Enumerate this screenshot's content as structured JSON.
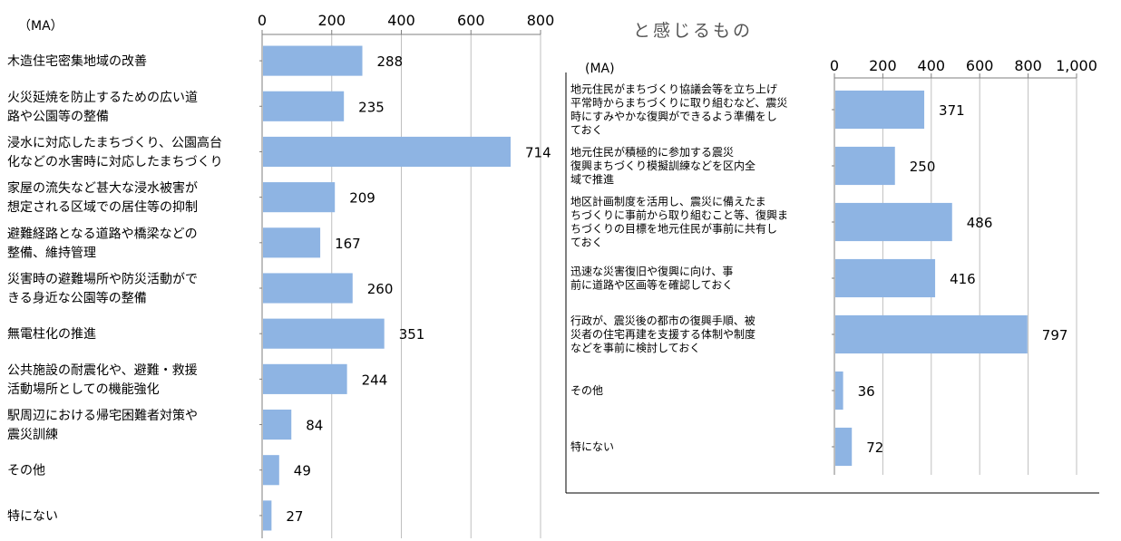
{
  "colors": {
    "bar": "#8EB4E3",
    "axis": "#7F7F7F",
    "grid": "#BFBFBF"
  },
  "chart_data": [
    {
      "type": "bar",
      "orientation": "horizontal",
      "unit_label": "（MA）",
      "xlim": [
        0,
        800
      ],
      "ticks": [
        "0",
        "200",
        "400",
        "600",
        "800"
      ],
      "grid": true,
      "categories": [
        [
          "木造住宅密集地域の改善"
        ],
        [
          "火災延焼を防止するための広い道",
          "路や公園等の整備"
        ],
        [
          "浸水に対応したまちづくり、公園高台",
          "化などの水害時に対応したまちづくり"
        ],
        [
          "家屋の流失など甚大な浸水被害が",
          "想定される区域での居住等の抑制"
        ],
        [
          "避難経路となる道路や橋梁などの",
          "整備、維持管理"
        ],
        [
          "災害時の避難場所や防災活動がで",
          "きる身近な公園等の整備"
        ],
        [
          "無電柱化の推進"
        ],
        [
          "公共施設の耐震化や、避難・救援",
          "活動場所としての機能強化"
        ],
        [
          "駅周辺における帰宅困難者対策や",
          "震災訓練"
        ],
        [
          "その他"
        ],
        [
          "特にない"
        ]
      ],
      "values": [
        288,
        235,
        714,
        209,
        167,
        260,
        351,
        244,
        84,
        49,
        27
      ]
    },
    {
      "type": "bar",
      "orientation": "horizontal",
      "title": "と感じるもの",
      "unit_label": "(MA)",
      "xlim": [
        0,
        1000
      ],
      "ticks": [
        "0",
        "200",
        "400",
        "600",
        "800",
        "1,000"
      ],
      "grid": true,
      "categories": [
        [
          "地元住民がまちづくり協議会等を立ち上げ",
          "平常時からまちづくりに取り組むなど、震災",
          "時にすみやかな復興ができるよう準備をし",
          "ておく"
        ],
        [
          "地元住民が積極的に参加する震災",
          "復興まちづくり模擬訓練などを区内全",
          "域で推進"
        ],
        [
          "地区計画制度を活用し、震災に備えたま",
          "ちづくりに事前から取り組むこと等、復興ま",
          "ちづくりの目標を地元住民が事前に共有し",
          "ておく"
        ],
        [
          "迅速な災害復旧や復興に向け、事",
          "前に道路や区画等を確認しておく"
        ],
        [
          "行政が、震災後の都市の復興手順、被",
          "災者の住宅再建を支援する体制や制度",
          "などを事前に検討しておく"
        ],
        [
          "その他"
        ],
        [
          "特にない"
        ]
      ],
      "values": [
        371,
        250,
        486,
        416,
        797,
        36,
        72
      ]
    }
  ]
}
